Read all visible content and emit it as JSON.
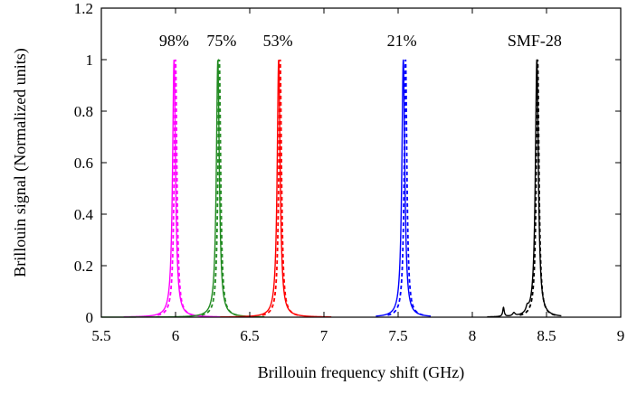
{
  "chart_data": {
    "type": "line",
    "xlabel": "Brillouin frequency shift (GHz)",
    "ylabel": "Brillouin signal (Normalized units)",
    "xlim": [
      5.5,
      9
    ],
    "ylim": [
      0,
      1.2
    ],
    "xticks": [
      5.5,
      6,
      6.5,
      7,
      7.5,
      8,
      8.5,
      9
    ],
    "xtick_labels": [
      "5.5",
      "6",
      "6.5",
      "7",
      "7.5",
      "8",
      "8.5",
      "9"
    ],
    "yticks": [
      0,
      0.2,
      0.4,
      0.6,
      0.8,
      1,
      1.2
    ],
    "ytick_labels": [
      "0",
      "0.2",
      "0.4",
      "0.6",
      "0.8",
      "1",
      "1.2"
    ],
    "grid": false,
    "legend": "none",
    "series": [
      {
        "name": "98%",
        "color": "#ff00ff",
        "peak": 5.99,
        "width": 0.012,
        "range": [
          5.65,
          6.3
        ],
        "fit_peak": 6.0
      },
      {
        "name": "75%",
        "color": "#228b22",
        "peak": 6.285,
        "width": 0.012,
        "range": [
          5.5,
          6.6
        ],
        "fit_peak": 6.295
      },
      {
        "name": "53%",
        "color": "#ff0000",
        "peak": 6.695,
        "width": 0.012,
        "range": [
          6.3,
          7.05
        ],
        "fit_peak": 6.705
      },
      {
        "name": "21%",
        "color": "#0000ff",
        "peak": 7.535,
        "width": 0.012,
        "range": [
          7.35,
          7.72
        ],
        "fit_peak": 7.55
      },
      {
        "name": "SMF-28",
        "color": "#000000",
        "peak": 8.435,
        "width": 0.012,
        "range": [
          8.1,
          8.6
        ],
        "fit_peak": 8.44
      }
    ],
    "annotations": [
      {
        "text": "98%",
        "x": 5.99
      },
      {
        "text": "75%",
        "x": 6.31
      },
      {
        "text": "53%",
        "x": 6.69
      },
      {
        "text": "21%",
        "x": 7.525
      },
      {
        "text": "SMF-28",
        "x": 8.42
      }
    ]
  }
}
